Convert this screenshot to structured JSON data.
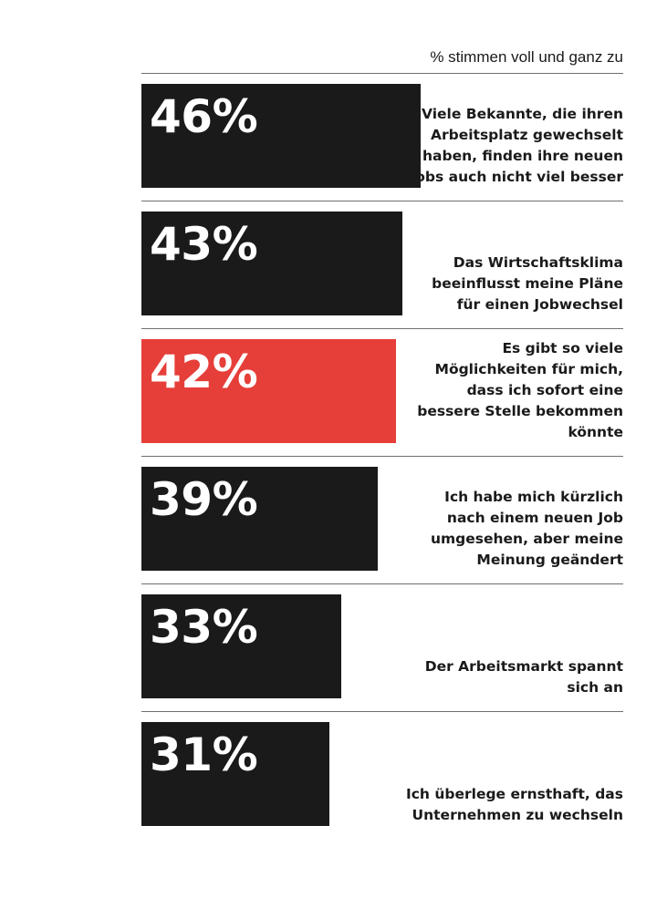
{
  "chart_data": {
    "type": "bar",
    "orientation": "horizontal",
    "subtitle": "% stimmen voll und ganz zu",
    "unit": "%",
    "xlim": [
      0,
      100
    ],
    "grid": false,
    "legend": "none",
    "highlight_color": "#e63e39",
    "bar_color": "#1a1a1a",
    "items": [
      {
        "value": 46,
        "display": "46%",
        "label": "Viele Bekannte, die ihren Arbeitsplatz gewechselt haben, finden ihre neuen Jobs auch nicht viel besser",
        "highlight": false
      },
      {
        "value": 43,
        "display": "43%",
        "label": "Das Wirtschaftsklima beeinflusst meine Pläne für einen Jobwechsel",
        "highlight": false
      },
      {
        "value": 42,
        "display": "42%",
        "label": "Es gibt so viele Möglichkeiten für mich, dass ich sofort eine bessere Stelle bekommen könnte",
        "highlight": true
      },
      {
        "value": 39,
        "display": "39%",
        "label": "Ich habe mich kürzlich nach einem neuen Job umgesehen, aber meine Meinung geändert",
        "highlight": false
      },
      {
        "value": 33,
        "display": "33%",
        "label": "Der Arbeitsmarkt spannt sich an",
        "highlight": false
      },
      {
        "value": 31,
        "display": "31%",
        "label": "Ich überlege ernsthaft, das Unternehmen zu wechseln",
        "highlight": false
      }
    ]
  }
}
